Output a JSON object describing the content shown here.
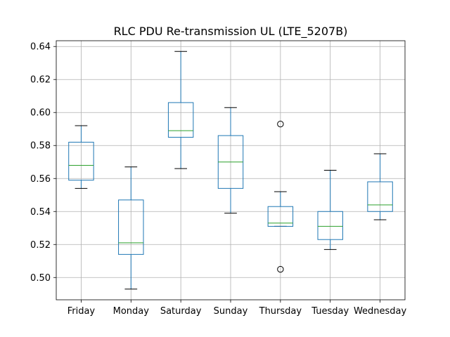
{
  "chart_data": {
    "type": "boxplot",
    "title": "RLC PDU Re-transmission UL (LTE_5207B)",
    "xlabel": "",
    "ylabel": "",
    "ylim": [
      0.4865,
      0.6435
    ],
    "yticks": [
      "0.50",
      "0.52",
      "0.54",
      "0.56",
      "0.58",
      "0.60",
      "0.62",
      "0.64"
    ],
    "grid": true,
    "colors": {
      "box": "#1f77b4",
      "median": "#2ca02c",
      "grid": "#b0b0b0",
      "axis": "#000000"
    },
    "categories": [
      "Friday",
      "Monday",
      "Saturday",
      "Sunday",
      "Thursday",
      "Tuesday",
      "Wednesday"
    ],
    "boxes": [
      {
        "category": "Friday",
        "whislo": 0.554,
        "q1": 0.559,
        "med": 0.568,
        "q3": 0.582,
        "whishi": 0.592,
        "fliers": []
      },
      {
        "category": "Monday",
        "whislo": 0.493,
        "q1": 0.514,
        "med": 0.521,
        "q3": 0.547,
        "whishi": 0.567,
        "fliers": []
      },
      {
        "category": "Saturday",
        "whislo": 0.566,
        "q1": 0.585,
        "med": 0.589,
        "q3": 0.606,
        "whishi": 0.637,
        "fliers": []
      },
      {
        "category": "Sunday",
        "whislo": 0.539,
        "q1": 0.554,
        "med": 0.57,
        "q3": 0.586,
        "whishi": 0.603,
        "fliers": []
      },
      {
        "category": "Thursday",
        "whislo": 0.531,
        "q1": 0.531,
        "med": 0.533,
        "q3": 0.543,
        "whishi": 0.552,
        "fliers": [
          0.593,
          0.505
        ]
      },
      {
        "category": "Tuesday",
        "whislo": 0.517,
        "q1": 0.523,
        "med": 0.531,
        "q3": 0.54,
        "whishi": 0.565,
        "fliers": []
      },
      {
        "category": "Wednesday",
        "whislo": 0.535,
        "q1": 0.54,
        "med": 0.544,
        "q3": 0.558,
        "whishi": 0.575,
        "fliers": []
      }
    ]
  }
}
